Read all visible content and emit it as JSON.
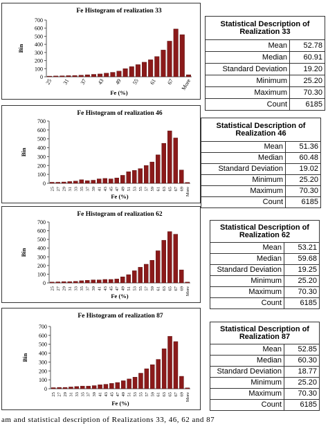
{
  "caption": "am and statistical description of Realizations 33, 46, 62 and 87",
  "colors": {
    "bar": "#8b1a1a",
    "bar_edge": "#4a0a0a"
  },
  "chart_data": [
    {
      "type": "bar",
      "title": "Fe Histogram of realization 33",
      "xlabel": "Fe (%)",
      "ylabel": "Bin",
      "ylim": [
        0,
        700
      ],
      "yticks": [
        "0",
        "100",
        "200",
        "300",
        "400",
        "500",
        "600",
        "700"
      ],
      "xtick_labels": [
        "25",
        "31",
        "37",
        "43",
        "49",
        "55",
        "61",
        "67",
        "More"
      ],
      "values": [
        8,
        10,
        12,
        14,
        16,
        20,
        25,
        30,
        35,
        45,
        55,
        70,
        100,
        125,
        150,
        180,
        210,
        250,
        330,
        440,
        590,
        520,
        25
      ],
      "grid": false
    },
    {
      "type": "bar",
      "title": "Fe Histogram of realization 46",
      "xlabel": "Fe (%)",
      "ylabel": "Bin",
      "ylim": [
        0,
        700
      ],
      "yticks": [
        "0",
        "100",
        "200",
        "300",
        "400",
        "500",
        "600",
        "700"
      ],
      "xtick_labels": [
        "25",
        "27",
        "29",
        "31",
        "33",
        "35",
        "37",
        "39",
        "41",
        "43",
        "45",
        "47",
        "49",
        "51",
        "53",
        "55",
        "57",
        "59",
        "61",
        "63",
        "65",
        "67",
        "69",
        "More"
      ],
      "values": [
        12,
        12,
        15,
        20,
        25,
        40,
        30,
        35,
        50,
        55,
        50,
        60,
        90,
        130,
        145,
        165,
        200,
        240,
        320,
        450,
        590,
        510,
        150,
        10
      ],
      "grid": false
    },
    {
      "type": "bar",
      "title": "Fe Histogram of realization 62",
      "xlabel": "Fe (%)",
      "ylabel": "Bin",
      "ylim": [
        0,
        700
      ],
      "yticks": [
        "0",
        "100",
        "200",
        "300",
        "400",
        "500",
        "600",
        "700"
      ],
      "xtick_labels": [
        "25",
        "27",
        "29",
        "31",
        "33",
        "35",
        "37",
        "39",
        "41",
        "43",
        "45",
        "47",
        "49",
        "51",
        "53",
        "55",
        "57",
        "59",
        "61",
        "63",
        "65",
        "67",
        "69",
        "More"
      ],
      "values": [
        10,
        12,
        15,
        15,
        18,
        25,
        30,
        35,
        35,
        40,
        40,
        45,
        70,
        95,
        140,
        180,
        215,
        260,
        370,
        490,
        590,
        560,
        150,
        10
      ],
      "grid": false
    },
    {
      "type": "bar",
      "title": "Fe Histogram of realization 87",
      "xlabel": "Fe (%)",
      "ylabel": "Bin",
      "ylim": [
        0,
        700
      ],
      "yticks": [
        "0",
        "100",
        "200",
        "300",
        "400",
        "500",
        "600",
        "700"
      ],
      "xtick_labels": [
        "25",
        "27",
        "29",
        "31",
        "33",
        "35",
        "37",
        "39",
        "41",
        "43",
        "45",
        "47",
        "49",
        "51",
        "53",
        "55",
        "57",
        "59",
        "61",
        "63",
        "65",
        "67",
        "69",
        "More"
      ],
      "values": [
        12,
        15,
        15,
        20,
        25,
        30,
        30,
        35,
        45,
        50,
        60,
        70,
        90,
        110,
        130,
        175,
        225,
        270,
        330,
        450,
        590,
        530,
        140,
        10
      ],
      "grid": false
    },
    {
      "type": "table",
      "title": "Statistical Description of Realization 33",
      "rows": [
        {
          "label": "Mean",
          "value": "52.78"
        },
        {
          "label": "Median",
          "value": "60.91"
        },
        {
          "label": "Standard Deviation",
          "value": "19.20"
        },
        {
          "label": "Minimum",
          "value": "25.20"
        },
        {
          "label": "Maximum",
          "value": "70.30"
        },
        {
          "label": "Count",
          "value": "6185"
        }
      ]
    },
    {
      "type": "table",
      "title": "Statistical Description of Realization 46",
      "rows": [
        {
          "label": "Mean",
          "value": "51.36"
        },
        {
          "label": "Median",
          "value": "60.48"
        },
        {
          "label": "Standard Deviation",
          "value": "19.02"
        },
        {
          "label": "Minimum",
          "value": "25.20"
        },
        {
          "label": "Maximum",
          "value": "70.30"
        },
        {
          "label": "Count",
          "value": "6185"
        }
      ]
    },
    {
      "type": "table",
      "title": "Statistical Description of Realization 62",
      "rows": [
        {
          "label": "Mean",
          "value": "53.21"
        },
        {
          "label": "Median",
          "value": "59.68"
        },
        {
          "label": "Standard Deviation",
          "value": "19.25"
        },
        {
          "label": "Minimum",
          "value": "25.20"
        },
        {
          "label": "Maximum",
          "value": "70.30"
        },
        {
          "label": "Count",
          "value": "6185"
        }
      ]
    },
    {
      "type": "table",
      "title": "Statistical Description of Realization 87",
      "rows": [
        {
          "label": "Mean",
          "value": "52.85"
        },
        {
          "label": "Median",
          "value": "60.30"
        },
        {
          "label": "Standard Deviation",
          "value": "18.77"
        },
        {
          "label": "Minimum",
          "value": "25.20"
        },
        {
          "label": "Maximum",
          "value": "70.30"
        },
        {
          "label": "Count",
          "value": "6185"
        }
      ]
    }
  ]
}
